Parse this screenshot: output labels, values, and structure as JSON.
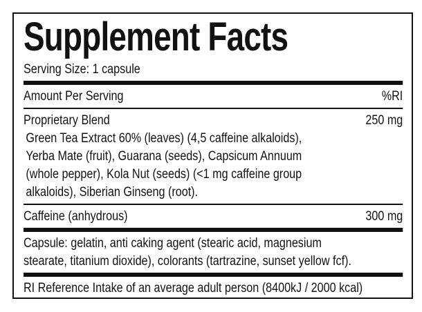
{
  "title": "Supplement Facts",
  "serving_size": "Serving Size: 1 capsule",
  "header": {
    "amount_label": "Amount Per Serving",
    "ri_label": "%RI"
  },
  "proprietary_blend": {
    "name": "Proprietary Blend",
    "amount": "250 mg",
    "ingredients_lines": [
      "Green Tea Extract 60% (leaves) (4,5 caffeine alkaloids),",
      "Yerba Mate (fruit), Guarana (seeds), Capsicum Annuum",
      "(whole pepper), Kola Nut (seeds) (<1 mg caffeine group",
      "alkaloids), Siberian Ginseng (root)."
    ]
  },
  "caffeine": {
    "name": "Caffeine (anhydrous)",
    "amount": "300 mg"
  },
  "capsule_lines": [
    "Capsule: gelatin, anti caking agent (stearic acid, magnesium",
    "stearate, titanium dioxide), colorants (tartrazine, sunset yellow fcf)."
  ],
  "footnote": "RI Reference Intake of an average adult person (8400kJ / 2000 kcal)"
}
